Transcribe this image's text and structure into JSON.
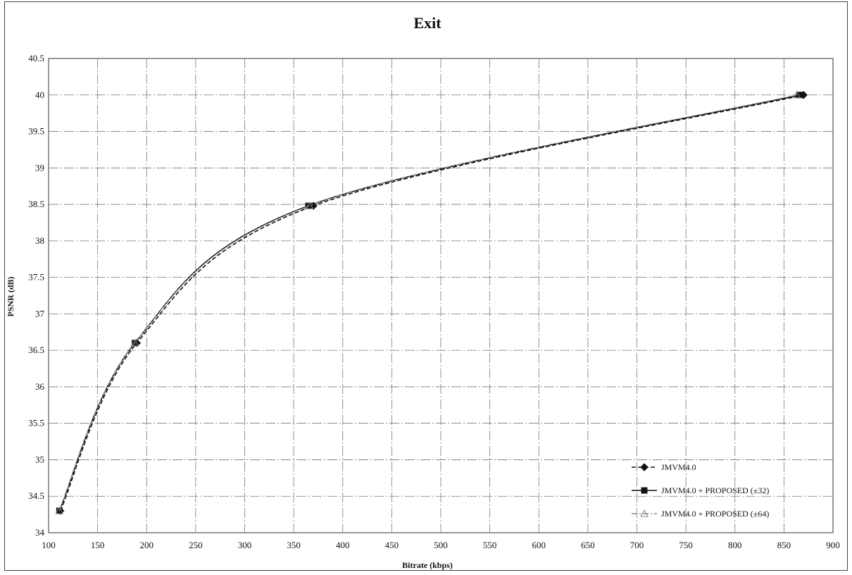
{
  "chart_data": {
    "type": "line",
    "title": "Exit",
    "xlabel": "Bitrate (kbps)",
    "ylabel": "PSNR (dB)",
    "xlim": [
      100,
      900
    ],
    "ylim": [
      34,
      40.5
    ],
    "x_ticks": [
      100,
      150,
      200,
      250,
      300,
      350,
      400,
      450,
      500,
      550,
      600,
      650,
      700,
      750,
      800,
      850,
      900
    ],
    "y_ticks": [
      34,
      34.5,
      35,
      35.5,
      36,
      36.5,
      37,
      37.5,
      38,
      38.5,
      39,
      39.5,
      40,
      40.5
    ],
    "grid": true,
    "legend_position": "bottom-right",
    "series": [
      {
        "name": "JMVM4.0",
        "x": [
          112,
          190,
          370,
          870
        ],
        "y": [
          34.3,
          36.6,
          38.48,
          40.0
        ],
        "color": "#111111",
        "line_style": "dashed",
        "marker": "diamond"
      },
      {
        "name": "JMVM4.0 + PROPOSED (±32)",
        "x": [
          111,
          188,
          365,
          866
        ],
        "y": [
          34.3,
          36.6,
          38.48,
          40.0
        ],
        "color": "#111111",
        "line_style": "solid",
        "marker": "square"
      },
      {
        "name": "JMVM4.0 + PROPOSED (±64)",
        "x": [
          111,
          188,
          366,
          863
        ],
        "y": [
          34.3,
          36.6,
          38.48,
          40.0
        ],
        "color": "#888888",
        "line_style": "dash-dot",
        "marker": "triangle"
      }
    ]
  }
}
